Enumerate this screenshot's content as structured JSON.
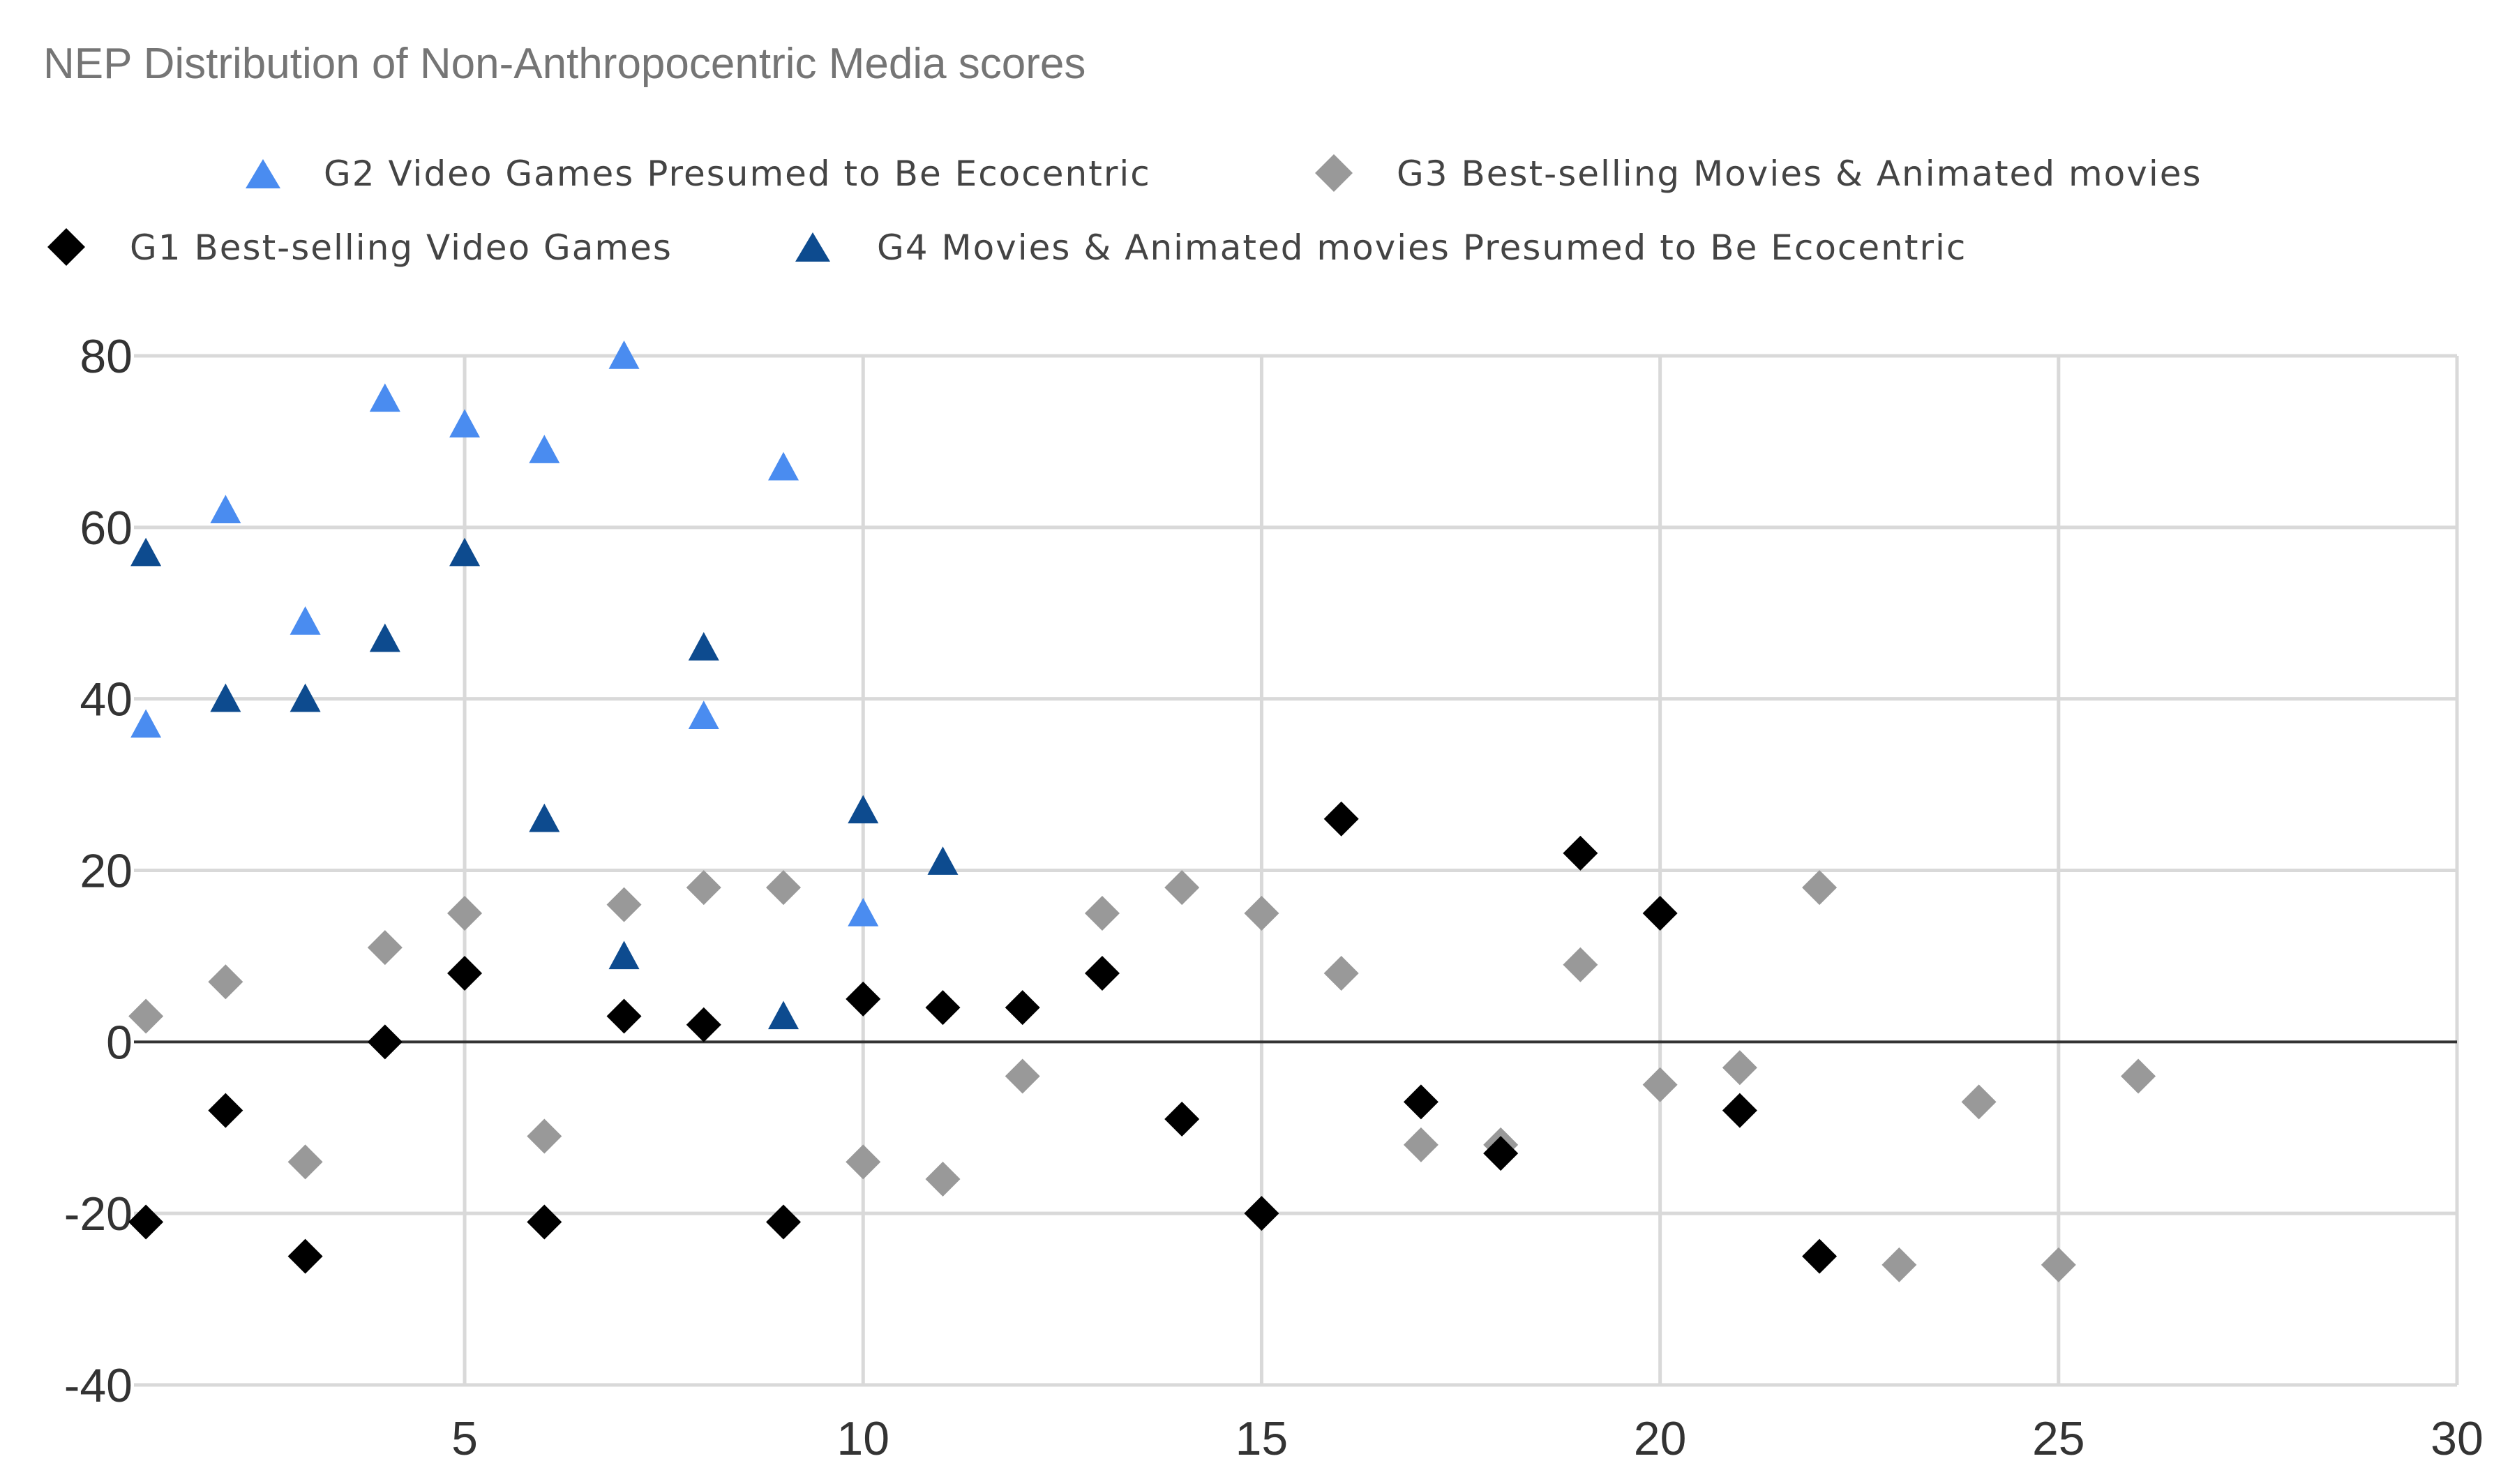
{
  "chart_data": {
    "type": "scatter",
    "title": "NEP Distribution of Non-Anthropocentric Media scores",
    "xlabel": "",
    "ylabel": "",
    "xlim": [
      0.5,
      30
    ],
    "ylim": [
      -40,
      80
    ],
    "x_ticks": [
      5,
      10,
      15,
      20,
      25,
      30
    ],
    "y_ticks": [
      -40,
      -20,
      0,
      20,
      40,
      60,
      80
    ],
    "grid": true,
    "legend_position": "top",
    "series": [
      {
        "name": "G2 Video Games Presumed to Be Ecocentric",
        "marker": "triangle",
        "color": "#4a8cf0",
        "points": [
          [
            1,
            37
          ],
          [
            2,
            62
          ],
          [
            3,
            49
          ],
          [
            4,
            75
          ],
          [
            5,
            72
          ],
          [
            6,
            69
          ],
          [
            7,
            80
          ],
          [
            8,
            38
          ],
          [
            9,
            67
          ],
          [
            10,
            15
          ]
        ]
      },
      {
        "name": "G3 Best-selling Movies & Animated movies",
        "marker": "diamond",
        "color": "#999999",
        "points": [
          [
            1,
            3
          ],
          [
            2,
            7
          ],
          [
            3,
            -14
          ],
          [
            4,
            11
          ],
          [
            5,
            15
          ],
          [
            6,
            -11
          ],
          [
            7,
            16
          ],
          [
            8,
            18
          ],
          [
            9,
            18
          ],
          [
            10,
            -14
          ],
          [
            11,
            -16
          ],
          [
            12,
            -4
          ],
          [
            13,
            15
          ],
          [
            14,
            18
          ],
          [
            15,
            15
          ],
          [
            16,
            8
          ],
          [
            17,
            -12
          ],
          [
            18,
            -12
          ],
          [
            19,
            9
          ],
          [
            20,
            -5
          ],
          [
            21,
            -3
          ],
          [
            22,
            18
          ],
          [
            23,
            -26
          ],
          [
            24,
            -7
          ],
          [
            25,
            -26
          ],
          [
            26,
            -4
          ]
        ]
      },
      {
        "name": "G1 Best-selling Video Games",
        "marker": "diamond",
        "color": "#000000",
        "points": [
          [
            1,
            -21
          ],
          [
            2,
            -8
          ],
          [
            3,
            -25
          ],
          [
            4,
            0
          ],
          [
            5,
            8
          ],
          [
            6,
            -21
          ],
          [
            7,
            3
          ],
          [
            8,
            2
          ],
          [
            9,
            -21
          ],
          [
            10,
            5
          ],
          [
            11,
            4
          ],
          [
            12,
            4
          ],
          [
            13,
            8
          ],
          [
            14,
            -9
          ],
          [
            15,
            -20
          ],
          [
            16,
            26
          ],
          [
            17,
            -7
          ],
          [
            18,
            -13
          ],
          [
            19,
            22
          ],
          [
            20,
            15
          ],
          [
            21,
            -8
          ],
          [
            22,
            -25
          ]
        ]
      },
      {
        "name": "G4 Movies & Animated movies Presumed to Be Ecocentric",
        "marker": "triangle",
        "color": "#0d4b8f",
        "points": [
          [
            1,
            57
          ],
          [
            2,
            40
          ],
          [
            3,
            40
          ],
          [
            4,
            47
          ],
          [
            5,
            57
          ],
          [
            6,
            26
          ],
          [
            7,
            10
          ],
          [
            8,
            46
          ],
          [
            9,
            3
          ],
          [
            10,
            27
          ],
          [
            11,
            21
          ]
        ]
      }
    ]
  }
}
